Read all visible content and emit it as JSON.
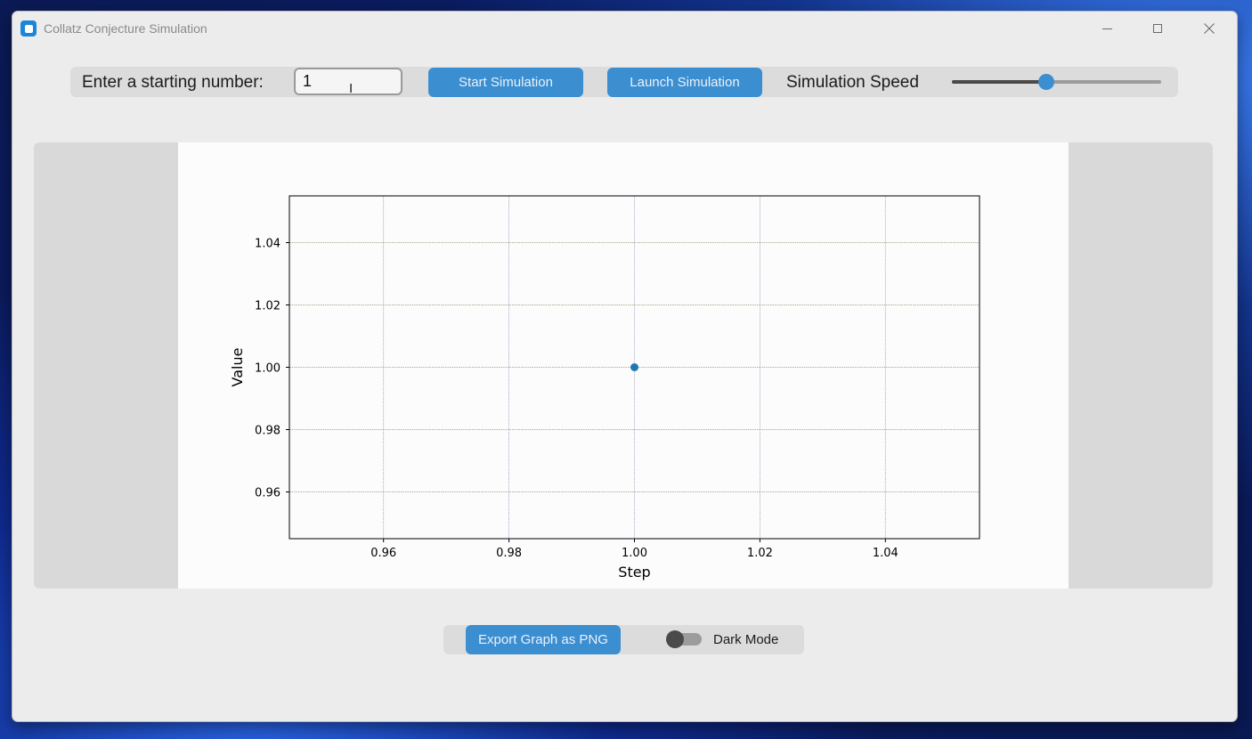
{
  "window": {
    "title": "Collatz Conjecture Simulation"
  },
  "controls": {
    "start_label": "Enter a starting number:",
    "start_value": "1",
    "start_button": "Start Simulation",
    "launch_button": "Launch Simulation",
    "speed_label": "Simulation Speed",
    "speed_fraction": 0.45
  },
  "bottom": {
    "export_button": "Export Graph as PNG",
    "dark_mode_label": "Dark Mode",
    "dark_mode_on": false
  },
  "colors": {
    "accent": "#3b8ed0",
    "point": "#1f77b4",
    "grid_x": "#a6a6c8",
    "grid_y": "#9a9a80"
  },
  "chart_data": {
    "type": "scatter",
    "x": [
      1.0
    ],
    "y": [
      1.0
    ],
    "xlabel": "Step",
    "ylabel": "Value",
    "xlim": [
      0.945,
      1.055
    ],
    "ylim": [
      0.945,
      1.055
    ],
    "xticks": [
      0.96,
      0.98,
      1.0,
      1.02,
      1.04
    ],
    "xtick_labels": [
      "0.96",
      "0.98",
      "1.00",
      "1.02",
      "1.04"
    ],
    "yticks": [
      0.96,
      0.98,
      1.0,
      1.02,
      1.04
    ],
    "ytick_labels": [
      "0.96",
      "0.98",
      "1.00",
      "1.02",
      "1.04"
    ],
    "grid": true
  }
}
